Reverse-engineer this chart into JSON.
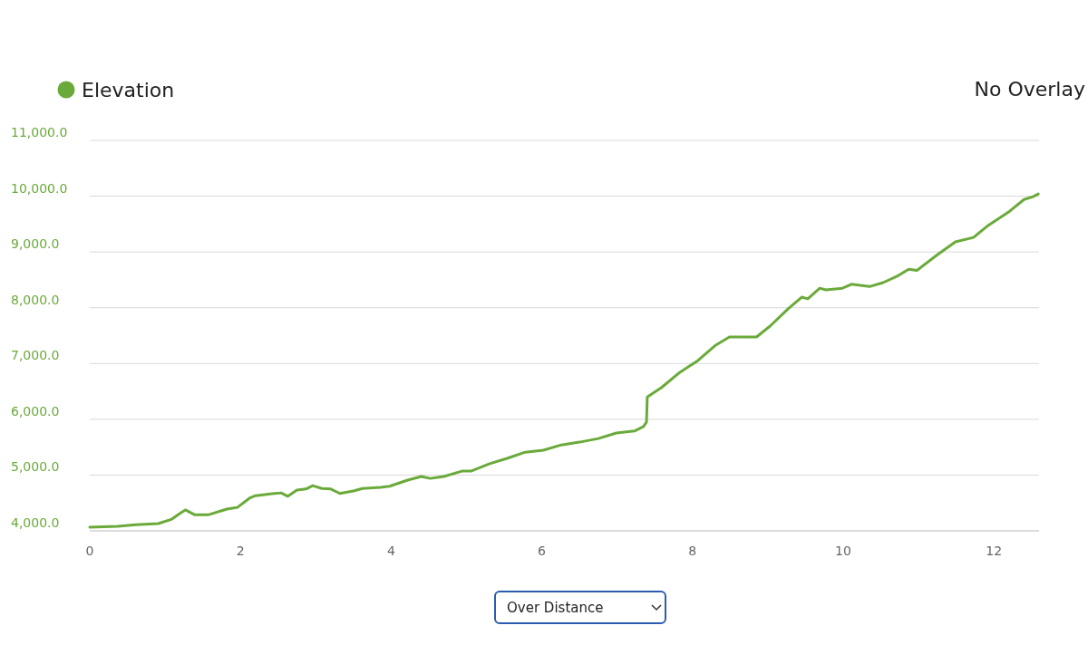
{
  "chart_data": {
    "type": "line",
    "legend": "top left",
    "grid": "y",
    "marker": "none",
    "line_style": "solid",
    "annotations": [
      "No Overlay",
      "Over Distance"
    ],
    "xlim": [
      0,
      12.6
    ],
    "xticks": [
      0,
      2,
      4,
      6,
      8,
      10,
      12
    ],
    "ylim": [
      4000,
      11000
    ],
    "yticks": [
      {
        "value": 4000,
        "label": "4,000.0"
      },
      {
        "value": 5000,
        "label": "5,000.0"
      },
      {
        "value": 6000,
        "label": "6,000.0"
      },
      {
        "value": 7000,
        "label": "7,000.0"
      },
      {
        "value": 8000,
        "label": "8,000.0"
      },
      {
        "value": 9000,
        "label": "9,000.0"
      },
      {
        "value": 10000,
        "label": "10,000.0"
      },
      {
        "value": 11000,
        "label": "11,000.0"
      }
    ],
    "series": [
      {
        "name": "Elevation",
        "color": "#6aaa3a",
        "x": [
          0,
          0.37,
          0.61,
          0.91,
          1.09,
          1.21,
          1.27,
          1.39,
          1.58,
          1.82,
          1.96,
          2.12,
          2.2,
          2.42,
          2.54,
          2.63,
          2.75,
          2.87,
          2.96,
          3.08,
          3.2,
          3.32,
          3.5,
          3.62,
          3.86,
          3.98,
          4.22,
          4.4,
          4.52,
          4.7,
          4.94,
          5.06,
          5.3,
          5.54,
          5.78,
          6.02,
          6.26,
          6.5,
          6.75,
          6.99,
          7.23,
          7.35,
          7.39,
          7.4,
          7.59,
          7.83,
          8.07,
          8.31,
          8.49,
          8.67,
          8.85,
          9.03,
          9.27,
          9.45,
          9.53,
          9.69,
          9.77,
          9.99,
          10.11,
          10.35,
          10.53,
          10.71,
          10.87,
          10.98,
          11.25,
          11.49,
          11.73,
          11.91,
          12.21,
          12.4,
          12.52,
          12.59
        ],
        "values": [
          4065,
          4080,
          4110,
          4130,
          4210,
          4325,
          4375,
          4290,
          4290,
          4390,
          4420,
          4585,
          4630,
          4665,
          4680,
          4620,
          4730,
          4750,
          4810,
          4760,
          4750,
          4670,
          4715,
          4760,
          4780,
          4800,
          4910,
          4975,
          4940,
          4975,
          5070,
          5070,
          5200,
          5300,
          5410,
          5445,
          5540,
          5590,
          5655,
          5755,
          5790,
          5870,
          5950,
          6400,
          6570,
          6840,
          7050,
          7330,
          7475,
          7475,
          7475,
          7670,
          7980,
          8190,
          8160,
          8350,
          8320,
          8350,
          8420,
          8380,
          8450,
          8560,
          8690,
          8670,
          8950,
          9180,
          9260,
          9460,
          9730,
          9940,
          9990,
          10040
        ]
      }
    ]
  }
}
